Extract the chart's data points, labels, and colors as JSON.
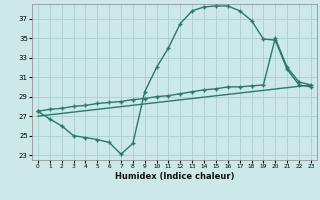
{
  "xlabel": "Humidex (Indice chaleur)",
  "bg_color": "#cce8e8",
  "grid_color": "#aad0d0",
  "line_color": "#2a7a6a",
  "xlim": [
    -0.5,
    23.5
  ],
  "ylim": [
    22.5,
    38.5
  ],
  "xticks": [
    0,
    1,
    2,
    3,
    4,
    5,
    6,
    7,
    8,
    9,
    10,
    11,
    12,
    13,
    14,
    15,
    16,
    17,
    18,
    19,
    20,
    21,
    22,
    23
  ],
  "yticks": [
    23,
    25,
    27,
    29,
    31,
    33,
    35,
    37
  ],
  "line1_x": [
    0,
    1,
    2,
    3,
    4,
    5,
    6,
    7,
    8,
    9,
    10,
    11,
    12,
    13,
    14,
    15,
    16,
    17,
    18,
    19,
    20,
    21,
    22,
    23
  ],
  "line1_y": [
    27.5,
    26.7,
    26.0,
    25.0,
    24.8,
    24.6,
    24.3,
    23.1,
    24.2,
    29.5,
    32.0,
    34.0,
    36.5,
    37.8,
    38.2,
    38.3,
    38.3,
    37.8,
    36.8,
    34.9,
    34.8,
    31.8,
    30.2,
    30.0
  ],
  "line2_x": [
    0,
    1,
    2,
    3,
    4,
    5,
    6,
    7,
    8,
    9,
    10,
    11,
    12,
    13,
    14,
    15,
    16,
    17,
    18,
    19,
    20,
    21,
    22,
    23
  ],
  "line2_y": [
    27.5,
    27.7,
    27.8,
    28.0,
    28.1,
    28.3,
    28.4,
    28.5,
    28.7,
    28.8,
    29.0,
    29.1,
    29.3,
    29.5,
    29.7,
    29.8,
    30.0,
    30.0,
    30.1,
    30.2,
    35.0,
    32.0,
    30.5,
    30.2
  ],
  "line3_x": [
    0,
    23
  ],
  "line3_y": [
    27.0,
    30.2
  ],
  "marker_size": 2.5,
  "line_width": 1.0
}
